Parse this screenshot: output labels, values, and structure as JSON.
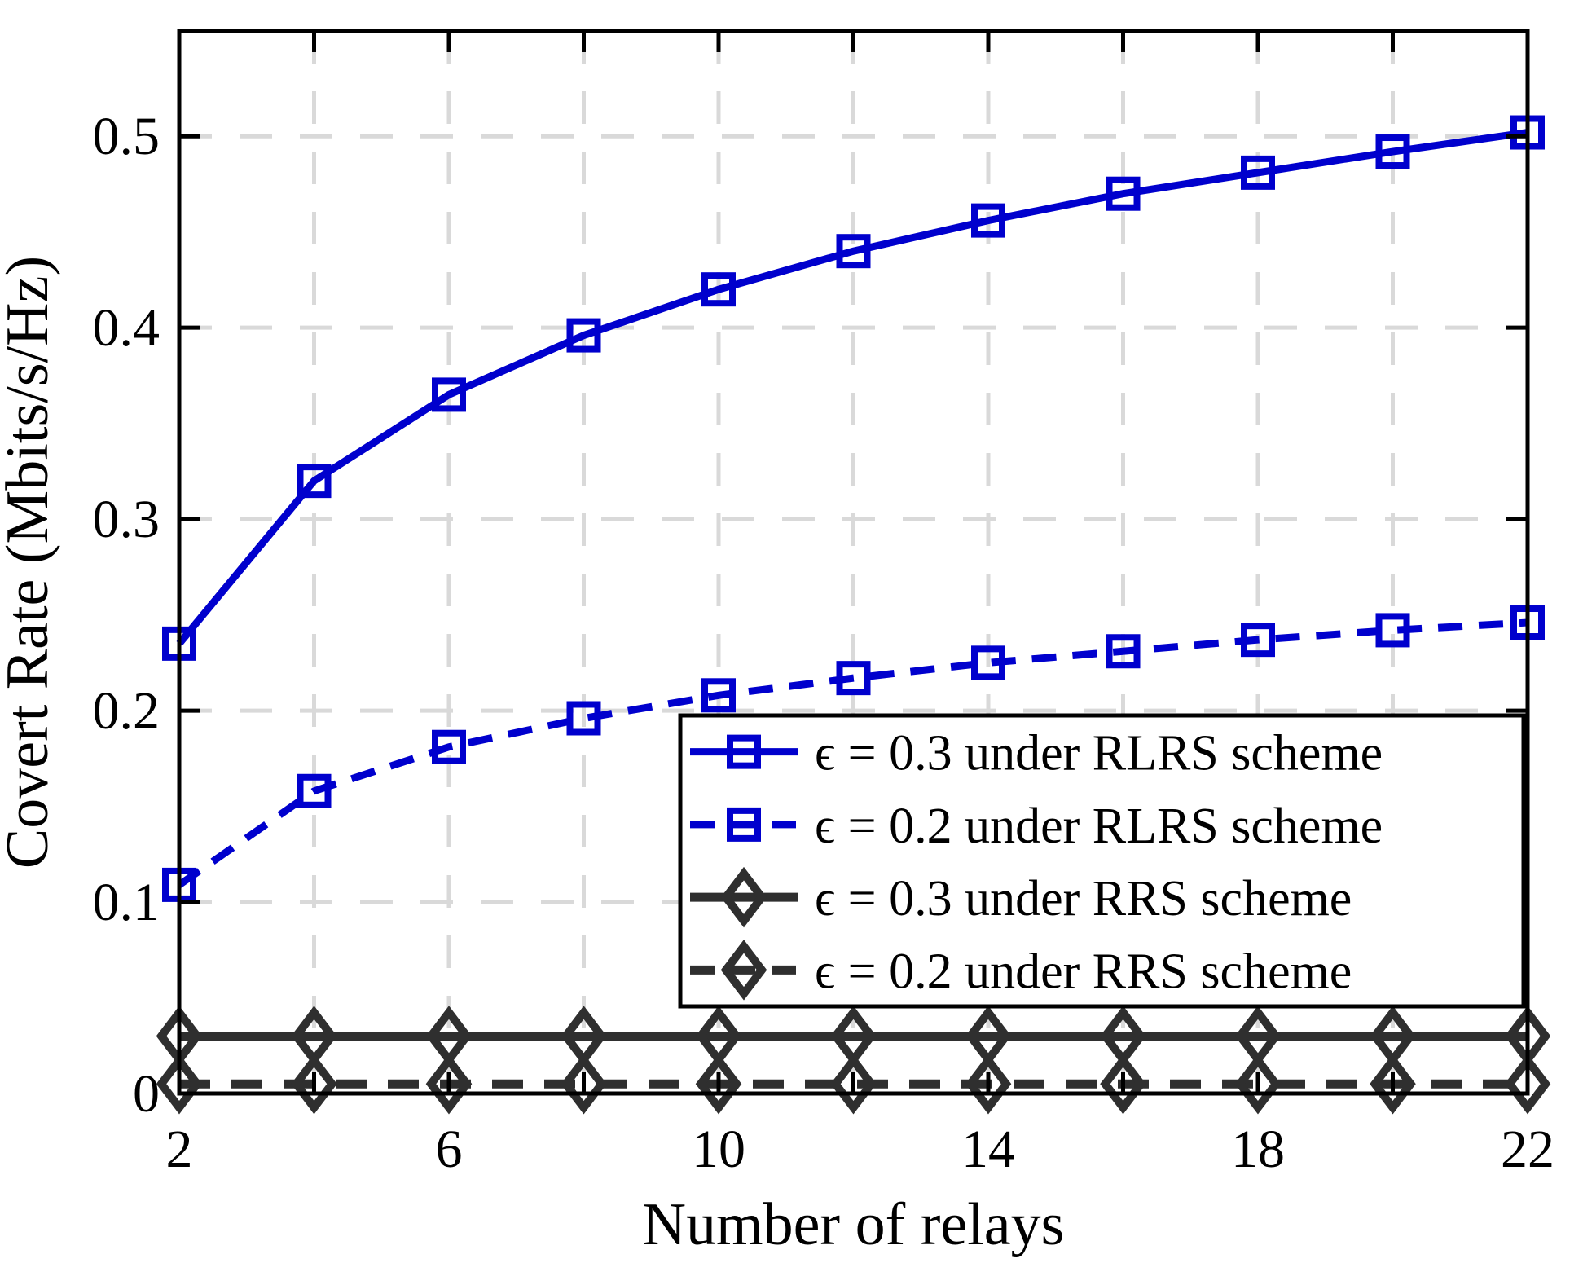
{
  "figure": {
    "background": "#ffffff"
  },
  "chart_data": {
    "type": "line",
    "title": "",
    "xlabel": "Number of relays",
    "ylabel": "Covert Rate (Mbits/s/Hz)",
    "x": [
      2,
      4,
      6,
      8,
      10,
      12,
      14,
      16,
      18,
      20,
      22
    ],
    "xticks": [
      2,
      6,
      10,
      14,
      18,
      22
    ],
    "yticks": [
      0,
      0.1,
      0.2,
      0.3,
      0.4,
      0.5
    ],
    "xlim": [
      2,
      22
    ],
    "ylim": [
      0,
      0.555
    ],
    "grid": true,
    "grid_color": "#d9d9d9",
    "axis_color": "#000000",
    "legend_position": "inside lower right",
    "series": [
      {
        "name": "ϵ = 0.3 under RLRS scheme",
        "color": "#0000CD",
        "style": "solid",
        "marker": "square",
        "values": [
          0.235,
          0.32,
          0.365,
          0.396,
          0.42,
          0.44,
          0.456,
          0.47,
          0.481,
          0.492,
          0.502
        ]
      },
      {
        "name": "ϵ = 0.2 under RLRS scheme",
        "color": "#0000CD",
        "style": "dashed",
        "marker": "square",
        "values": [
          0.109,
          0.158,
          0.181,
          0.196,
          0.208,
          0.217,
          0.225,
          0.231,
          0.237,
          0.242,
          0.246
        ]
      },
      {
        "name": "ϵ = 0.3 under RRS scheme",
        "color": "#2F2F2F",
        "style": "solid",
        "marker": "diamond",
        "values": [
          0.03,
          0.03,
          0.03,
          0.03,
          0.03,
          0.03,
          0.03,
          0.03,
          0.03,
          0.03,
          0.03
        ]
      },
      {
        "name": "ϵ = 0.2 under RRS scheme",
        "color": "#2F2F2F",
        "style": "dashed",
        "marker": "diamond",
        "values": [
          0.005,
          0.005,
          0.005,
          0.005,
          0.005,
          0.005,
          0.005,
          0.005,
          0.005,
          0.005,
          0.005
        ]
      }
    ]
  }
}
